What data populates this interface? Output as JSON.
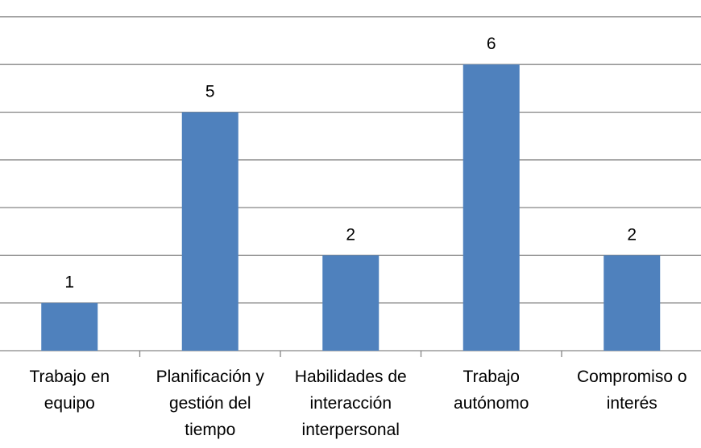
{
  "chart_data": {
    "type": "bar",
    "categories": [
      "Trabajo en equipo",
      "Planificación y gestión del tiempo",
      "Habilidades de interacción interpersonal",
      "Trabajo autónomo",
      "Compromiso o interés"
    ],
    "category_lines": [
      [
        "Trabajo en",
        "equipo"
      ],
      [
        "Planificación y",
        "gestión del",
        "tiempo"
      ],
      [
        "Habilidades de",
        "interacción",
        "interpersonal"
      ],
      [
        "Trabajo",
        "autónomo"
      ],
      [
        "Compromiso o",
        "interés"
      ]
    ],
    "values": [
      1,
      5,
      2,
      6,
      2
    ],
    "data_labels": [
      "1",
      "5",
      "2",
      "6",
      "2"
    ],
    "ylim": [
      0,
      7
    ],
    "grid": true,
    "legend": "none",
    "bar_color": "#4F81BD",
    "grid_color": "#868686"
  }
}
